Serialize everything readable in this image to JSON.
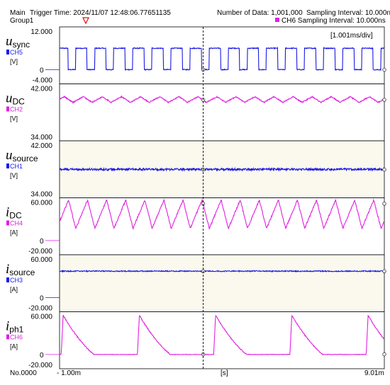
{
  "header": {
    "main": "Main",
    "group": "Group1",
    "trigger_time": "Trigger Time: 2024/11/07 12:48:06.77651135",
    "number_of_data": "Number of Data: 1,001,000",
    "sampling_interval": "Sampling Interval:  10.000ns",
    "ch6_sampling_interval": "CH6 Sampling Interval:  10.000ns",
    "ch6_color": "#e020e0"
  },
  "timebase": "[1.001ms/div]",
  "x_axis": {
    "start_label": "- 1.00m",
    "end_label": "9.01m",
    "unit": "[s]",
    "record_label": "No.0000"
  },
  "colors": {
    "blue": "#1a1ae6",
    "magenta": "#e020e0",
    "shaded_bg": "#fbf9ed"
  },
  "chart_data": [
    {
      "type": "line",
      "symbol": "u",
      "subscript": "sync",
      "channel": "CH5",
      "unit": "[V]",
      "color": "#1a1ae6",
      "ylim": [
        -4.0,
        12.0
      ],
      "tick_top": "12.000",
      "tick_bottom": "-4.000",
      "zero_label": "0",
      "x_range_ms": [
        -1.0,
        9.01
      ],
      "waveform": "square",
      "high": 6.0,
      "low": 0.0,
      "period_ms": 0.588,
      "duty": 0.6
    },
    {
      "type": "line",
      "symbol": "u",
      "subscript": "DC",
      "channel": "CH2",
      "unit": "[V]",
      "color": "#e020e0",
      "ylim": [
        34.0,
        42.0
      ],
      "tick_top": "42.000",
      "tick_bottom": "34.000",
      "x_range_ms": [
        -1.0,
        9.01
      ],
      "waveform": "ripple",
      "mean": 39.8,
      "ripple_pp": 0.8,
      "period_ms": 0.588
    },
    {
      "type": "line",
      "symbol": "u",
      "subscript": "source",
      "channel": "CH1",
      "unit": "[V]",
      "color": "#1a1ae6",
      "ylim": [
        34.0,
        42.0
      ],
      "tick_top": "42.000",
      "tick_bottom": "34.000",
      "x_range_ms": [
        -1.0,
        9.01
      ],
      "waveform": "flat",
      "mean": 38.0,
      "noise_pp": 0.3
    },
    {
      "type": "line",
      "symbol": "i",
      "subscript": "DC",
      "channel": "CH4",
      "unit": "[A]",
      "color": "#e020e0",
      "ylim": [
        -20.0,
        60.0
      ],
      "tick_top": "60.000",
      "tick_bottom": "-20.000",
      "zero_label": "0",
      "x_range_ms": [
        -1.0,
        9.01
      ],
      "waveform": "sawtooth",
      "min": 17.0,
      "max": 57.0,
      "period_ms": 0.588
    },
    {
      "type": "line",
      "symbol": "i",
      "subscript": "source",
      "channel": "CH3",
      "unit": "[A]",
      "color": "#1a1ae6",
      "ylim": [
        -20.0,
        60.0
      ],
      "tick_top": "60.000",
      "tick_bottom": "-20.000",
      "zero_label": "0",
      "x_range_ms": [
        -1.0,
        9.01
      ],
      "waveform": "flat",
      "mean": 37.0,
      "noise_pp": 1.5
    },
    {
      "type": "line",
      "symbol": "i",
      "subscript": "ph1",
      "channel": "CH6",
      "unit": "[A]",
      "color": "#e020e0",
      "ylim": [
        -20.0,
        60.0
      ],
      "tick_top": "60.000",
      "tick_bottom": "-20.000",
      "zero_label": "0",
      "x_range_ms": [
        -1.0,
        9.01
      ],
      "waveform": "pulse_decay",
      "peak": 55.0,
      "floor": 0.0,
      "period_ms": 2.35,
      "start_ms": -0.95,
      "decay_ms": 0.95
    }
  ]
}
